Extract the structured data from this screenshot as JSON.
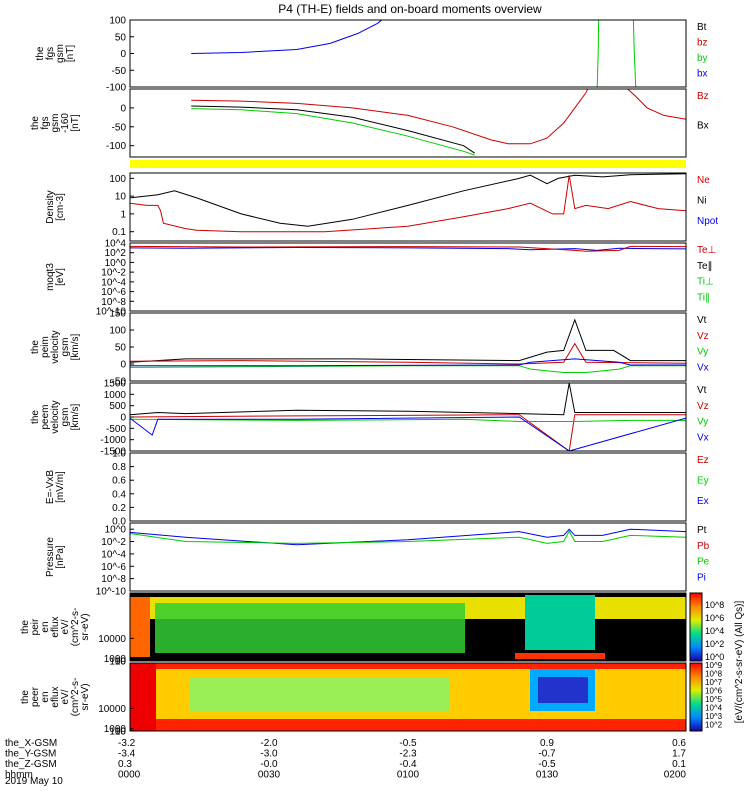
{
  "title": "P4 (TH-E) fields and on-board moments overview",
  "date_label": "2019 May 10",
  "colors": {
    "black": "#000000",
    "red": "#cc0000",
    "green": "#00cc00",
    "blue": "#0000ee",
    "yellow": "#ffff00"
  },
  "chart_data": [
    {
      "type": "line",
      "id": "fgs-gsm",
      "ylabel_lines": [
        "the",
        "fgs",
        "gsm",
        "[nT]"
      ],
      "ylim": [
        -100,
        100
      ],
      "yticks": [
        "100",
        "50",
        "0",
        "-50",
        "-100"
      ],
      "legend": [
        {
          "label": "Bt",
          "color": "black"
        },
        {
          "label": "bz",
          "color": "red"
        },
        {
          "label": "by",
          "color": "green"
        },
        {
          "label": "bx",
          "color": "blue"
        }
      ],
      "series": [
        {
          "name": "bx",
          "color": "blue",
          "x": [
            0.11,
            0.2,
            0.3,
            0.36,
            0.41,
            0.445,
            0.46
          ],
          "y": [
            0,
            3,
            12,
            30,
            60,
            90,
            110
          ]
        },
        {
          "name": "by",
          "color": "green",
          "x": [
            0.84,
            0.842,
            0.843
          ],
          "y": [
            -120,
            0,
            120
          ]
        },
        {
          "name": "by",
          "color": "green",
          "x": [
            0.905,
            0.907,
            0.91
          ],
          "y": [
            120,
            0,
            -120
          ]
        }
      ]
    },
    {
      "type": "line",
      "id": "fgs-gsm-160",
      "ylabel_lines": [
        "the",
        "fgs",
        "gsm",
        "-160",
        "[nT]"
      ],
      "ylim": [
        -130,
        50
      ],
      "yticks": [
        "0",
        "-50",
        "-100"
      ],
      "legend": [
        {
          "label": "Bz",
          "color": "red"
        },
        {
          "label": "Bx",
          "color": "black"
        }
      ],
      "series": [
        {
          "name": "red",
          "color": "red",
          "x": [
            0.11,
            0.2,
            0.3,
            0.4,
            0.5,
            0.58,
            0.65,
            0.68,
            0.72,
            0.75,
            0.78,
            0.8,
            0.82,
            0.83
          ],
          "y": [
            20,
            18,
            12,
            0,
            -20,
            -50,
            -85,
            -95,
            -95,
            -80,
            -40,
            0,
            40,
            70
          ]
        },
        {
          "name": "red",
          "color": "red",
          "x": [
            0.88,
            0.91,
            0.93,
            0.96,
            1.0
          ],
          "y": [
            70,
            30,
            0,
            -20,
            -30
          ]
        },
        {
          "name": "black",
          "color": "black",
          "x": [
            0.11,
            0.2,
            0.3,
            0.4,
            0.5,
            0.6,
            0.62
          ],
          "y": [
            5,
            2,
            -5,
            -25,
            -60,
            -100,
            -120
          ]
        },
        {
          "name": "green",
          "color": "green",
          "x": [
            0.11,
            0.2,
            0.3,
            0.4,
            0.5,
            0.6,
            0.62
          ],
          "y": [
            -2,
            -5,
            -15,
            -40,
            -75,
            -115,
            -125
          ]
        }
      ]
    },
    {
      "type": "line",
      "id": "density",
      "scale": "log",
      "ylabel_lines": [
        "Density",
        "[cm-3]"
      ],
      "ylim": [
        0.03,
        200
      ],
      "yticks": [
        "100",
        "10",
        "1",
        "0.1"
      ],
      "legend": [
        {
          "label": "Ne",
          "color": "red"
        },
        {
          "label": "Ni",
          "color": "black"
        },
        {
          "label": "Npot",
          "color": "blue"
        }
      ],
      "series": [
        {
          "name": "Ni",
          "color": "black",
          "x": [
            0,
            0.05,
            0.08,
            0.12,
            0.2,
            0.27,
            0.32,
            0.4,
            0.5,
            0.6,
            0.7,
            0.72,
            0.75,
            0.77,
            0.8,
            0.85,
            0.9,
            1.0
          ],
          "y": [
            8,
            12,
            20,
            8,
            1,
            0.3,
            0.2,
            0.5,
            3,
            20,
            100,
            150,
            50,
            100,
            150,
            120,
            160,
            180
          ]
        },
        {
          "name": "Ne",
          "color": "red",
          "x": [
            0,
            0.03,
            0.05,
            0.055,
            0.06,
            0.1,
            0.12,
            0.2,
            0.35,
            0.5,
            0.6,
            0.68,
            0.72,
            0.76,
            0.78,
            0.79,
            0.8,
            0.82,
            0.86,
            0.9,
            0.95,
            1.0
          ],
          "y": [
            4,
            3,
            3,
            1.5,
            0.3,
            0.15,
            0.12,
            0.1,
            0.1,
            0.2,
            0.7,
            2,
            4,
            1,
            1,
            150,
            2,
            3,
            2,
            5,
            2,
            1.5
          ]
        }
      ]
    },
    {
      "type": "line",
      "id": "temperature",
      "scale": "log",
      "ylabel_lines": [
        "moqt3",
        "[eV]"
      ],
      "ylim": [
        1e-10,
        10000.0
      ],
      "yticks": [
        "10^4",
        "10^2",
        "10^0",
        "10^-2",
        "10^-4",
        "10^-6",
        "10^-8",
        "10^-10"
      ],
      "legend": [
        {
          "label": "Te⊥",
          "color": "red"
        },
        {
          "label": "Te∥",
          "color": "black"
        },
        {
          "label": "Ti⊥",
          "color": "green"
        },
        {
          "label": "Ti∥",
          "color": "green"
        }
      ],
      "series": [
        {
          "name": "Ti",
          "color": "blue",
          "x": [
            0,
            0.1,
            0.3,
            0.5,
            0.68,
            0.72,
            0.8,
            0.84,
            0.88,
            1.0
          ],
          "y": [
            1000,
            800,
            1200,
            1000,
            700,
            400,
            700,
            300,
            800,
            600
          ]
        },
        {
          "name": "Te",
          "color": "red",
          "x": [
            0,
            0.2,
            0.5,
            0.7,
            0.8,
            0.82,
            0.88,
            0.9,
            1.0
          ],
          "y": [
            2000,
            1500,
            1800,
            1500,
            300,
            200,
            300,
            2000,
            1800
          ]
        }
      ]
    },
    {
      "type": "line",
      "id": "peim-velocity",
      "ylabel_lines": [
        "the",
        "peim",
        "velocity",
        "gsm",
        "[km/s]"
      ],
      "ylim": [
        -50,
        150
      ],
      "yticks": [
        "150",
        "100",
        "50",
        "0",
        "-50"
      ],
      "legend": [
        {
          "label": "Vt",
          "color": "black"
        },
        {
          "label": "Vz",
          "color": "red"
        },
        {
          "label": "Vy",
          "color": "green"
        },
        {
          "label": "Vx",
          "color": "blue"
        }
      ],
      "series": [
        {
          "name": "Vt",
          "color": "black",
          "x": [
            0,
            0.1,
            0.4,
            0.7,
            0.75,
            0.78,
            0.8,
            0.82,
            0.87,
            0.9,
            1.0
          ],
          "y": [
            5,
            15,
            15,
            10,
            35,
            40,
            130,
            40,
            40,
            10,
            10
          ]
        },
        {
          "name": "Vz",
          "color": "red",
          "x": [
            0,
            0.2,
            0.5,
            0.7,
            0.78,
            0.8,
            0.82,
            1.0
          ],
          "y": [
            8,
            10,
            5,
            0,
            5,
            60,
            5,
            2
          ]
        },
        {
          "name": "Vy",
          "color": "green",
          "x": [
            0,
            0.2,
            0.5,
            0.7,
            0.72,
            0.78,
            0.8,
            0.82,
            0.88,
            0.9,
            1.0
          ],
          "y": [
            -10,
            -8,
            -5,
            -5,
            -15,
            -25,
            -25,
            -25,
            -15,
            -5,
            -5
          ]
        },
        {
          "name": "Vx",
          "color": "blue",
          "x": [
            0,
            0.3,
            0.7,
            0.72,
            0.8,
            0.88,
            0.9,
            1.0
          ],
          "y": [
            -5,
            -5,
            -3,
            5,
            15,
            5,
            -3,
            -3
          ]
        }
      ]
    },
    {
      "type": "line",
      "id": "peem-velocity",
      "ylabel_lines": [
        "the",
        "peem",
        "velocity",
        "gsm",
        "[km/s]"
      ],
      "ylim": [
        -1500,
        1500
      ],
      "yticks": [
        "1500",
        "1000",
        "500",
        "0",
        "-500",
        "-1000",
        "-1500"
      ],
      "legend": [
        {
          "label": "Vt",
          "color": "black"
        },
        {
          "label": "Vz",
          "color": "red"
        },
        {
          "label": "Vy",
          "color": "green"
        },
        {
          "label": "Vx",
          "color": "blue"
        }
      ],
      "series": [
        {
          "name": "Vt",
          "color": "black",
          "x": [
            0,
            0.05,
            0.1,
            0.3,
            0.5,
            0.7,
            0.78,
            0.79,
            0.8,
            1.0
          ],
          "y": [
            100,
            200,
            150,
            300,
            250,
            150,
            100,
            1500,
            200,
            200
          ]
        },
        {
          "name": "Vz",
          "color": "red",
          "x": [
            0,
            0.3,
            0.7,
            0.79,
            0.8,
            1.0
          ],
          "y": [
            0,
            50,
            100,
            -1500,
            100,
            100
          ]
        },
        {
          "name": "Vy",
          "color": "green",
          "x": [
            0,
            0.3,
            0.6,
            0.7,
            0.8,
            0.9,
            1.0
          ],
          "y": [
            -100,
            -150,
            -100,
            -200,
            -200,
            -150,
            -150
          ]
        },
        {
          "name": "Vx",
          "color": "blue",
          "x": [
            0,
            0.04,
            0.05,
            0.3,
            0.7,
            0.79,
            1.0
          ],
          "y": [
            -50,
            -800,
            -100,
            -100,
            0,
            -1500,
            -50
          ]
        }
      ]
    },
    {
      "type": "line",
      "id": "efield",
      "ylabel_lines": [
        "E=-VxB",
        "[mV/m]"
      ],
      "ylim": [
        0,
        1
      ],
      "yticks": [
        "1.0",
        "0.8",
        "0.6",
        "0.4",
        "0.2",
        "0.0"
      ],
      "legend": [
        {
          "label": "Ez",
          "color": "red"
        },
        {
          "label": "Ey",
          "color": "green"
        },
        {
          "label": "Ex",
          "color": "blue"
        }
      ],
      "series": []
    },
    {
      "type": "line",
      "id": "pressure",
      "scale": "log",
      "ylabel_lines": [
        "Pressure",
        "[nPa]"
      ],
      "ylim": [
        1e-10,
        10.0
      ],
      "yticks": [
        "10^0",
        "10^-2",
        "10^-4",
        "10^-6",
        "10^-8",
        "10^-10"
      ],
      "legend": [
        {
          "label": "Pt",
          "color": "black"
        },
        {
          "label": "Pb",
          "color": "red"
        },
        {
          "label": "Pe",
          "color": "green"
        },
        {
          "label": "Pi",
          "color": "blue"
        }
      ],
      "series": [
        {
          "name": "Pb",
          "color": "black",
          "x": [
            0,
            0.06
          ],
          "y": [
            15,
            15
          ]
        },
        {
          "name": "Pi",
          "color": "blue",
          "x": [
            0,
            0.1,
            0.3,
            0.5,
            0.7,
            0.75,
            0.78,
            0.79,
            0.8,
            0.85,
            0.9,
            1.0
          ],
          "y": [
            0.3,
            0.05,
            0.003,
            0.02,
            0.4,
            0.05,
            0.1,
            1,
            0.1,
            0.1,
            1,
            0.4
          ]
        },
        {
          "name": "Pe",
          "color": "green",
          "x": [
            0,
            0.1,
            0.3,
            0.5,
            0.7,
            0.75,
            0.78,
            0.79,
            0.8,
            0.85,
            0.9,
            1.0
          ],
          "y": [
            0.2,
            0.01,
            0.005,
            0.01,
            0.05,
            0.005,
            0.01,
            0.5,
            0.01,
            0.01,
            0.1,
            0.05
          ]
        }
      ]
    },
    {
      "type": "heatmap",
      "id": "peir-en-eflux",
      "ylabel_lines": [
        "the",
        "peir",
        "en",
        "eflux",
        "eV/",
        "(cm^2-s-",
        "sr-eV)"
      ],
      "ylim": [
        5,
        30000
      ],
      "yticks": [
        "10000",
        "1000",
        "100",
        "10"
      ]
    },
    {
      "type": "heatmap",
      "id": "peer-en-eflux",
      "ylabel_lines": [
        "the",
        "peer",
        "en",
        "eflux",
        "eV/",
        "(cm^2-s-",
        "sr-eV)"
      ],
      "ylim": [
        5,
        30000
      ],
      "yticks": [
        "10000",
        "1000",
        "100",
        "10"
      ]
    }
  ],
  "colorbar": {
    "label": "[eV/(cm^2-s-sr-eV) (All Qs)]",
    "ticks_top": [
      "10^8",
      "10^6",
      "10^4",
      "10^2",
      "10^0"
    ],
    "ticks_bottom": [
      "10^9",
      "10^8",
      "10^7",
      "10^6",
      "10^5",
      "10^4",
      "10^3",
      "10^2"
    ]
  },
  "x_axis": {
    "rows": [
      {
        "label": "the_X-GSM",
        "values": [
          "-3.2",
          "-2.0",
          "-0.5",
          "0.9",
          "0.6"
        ]
      },
      {
        "label": "the_Y-GSM",
        "values": [
          "-3.4",
          "-3.0",
          "-2.3",
          "-0.7",
          "1.7"
        ]
      },
      {
        "label": "the_Z-GSM",
        "values": [
          "0.3",
          "-0.0",
          "-0.4",
          "-0.5",
          "0.1"
        ]
      },
      {
        "label": "hhmm",
        "values": [
          "0000",
          "0030",
          "0100",
          "0130",
          "0200"
        ]
      }
    ]
  }
}
